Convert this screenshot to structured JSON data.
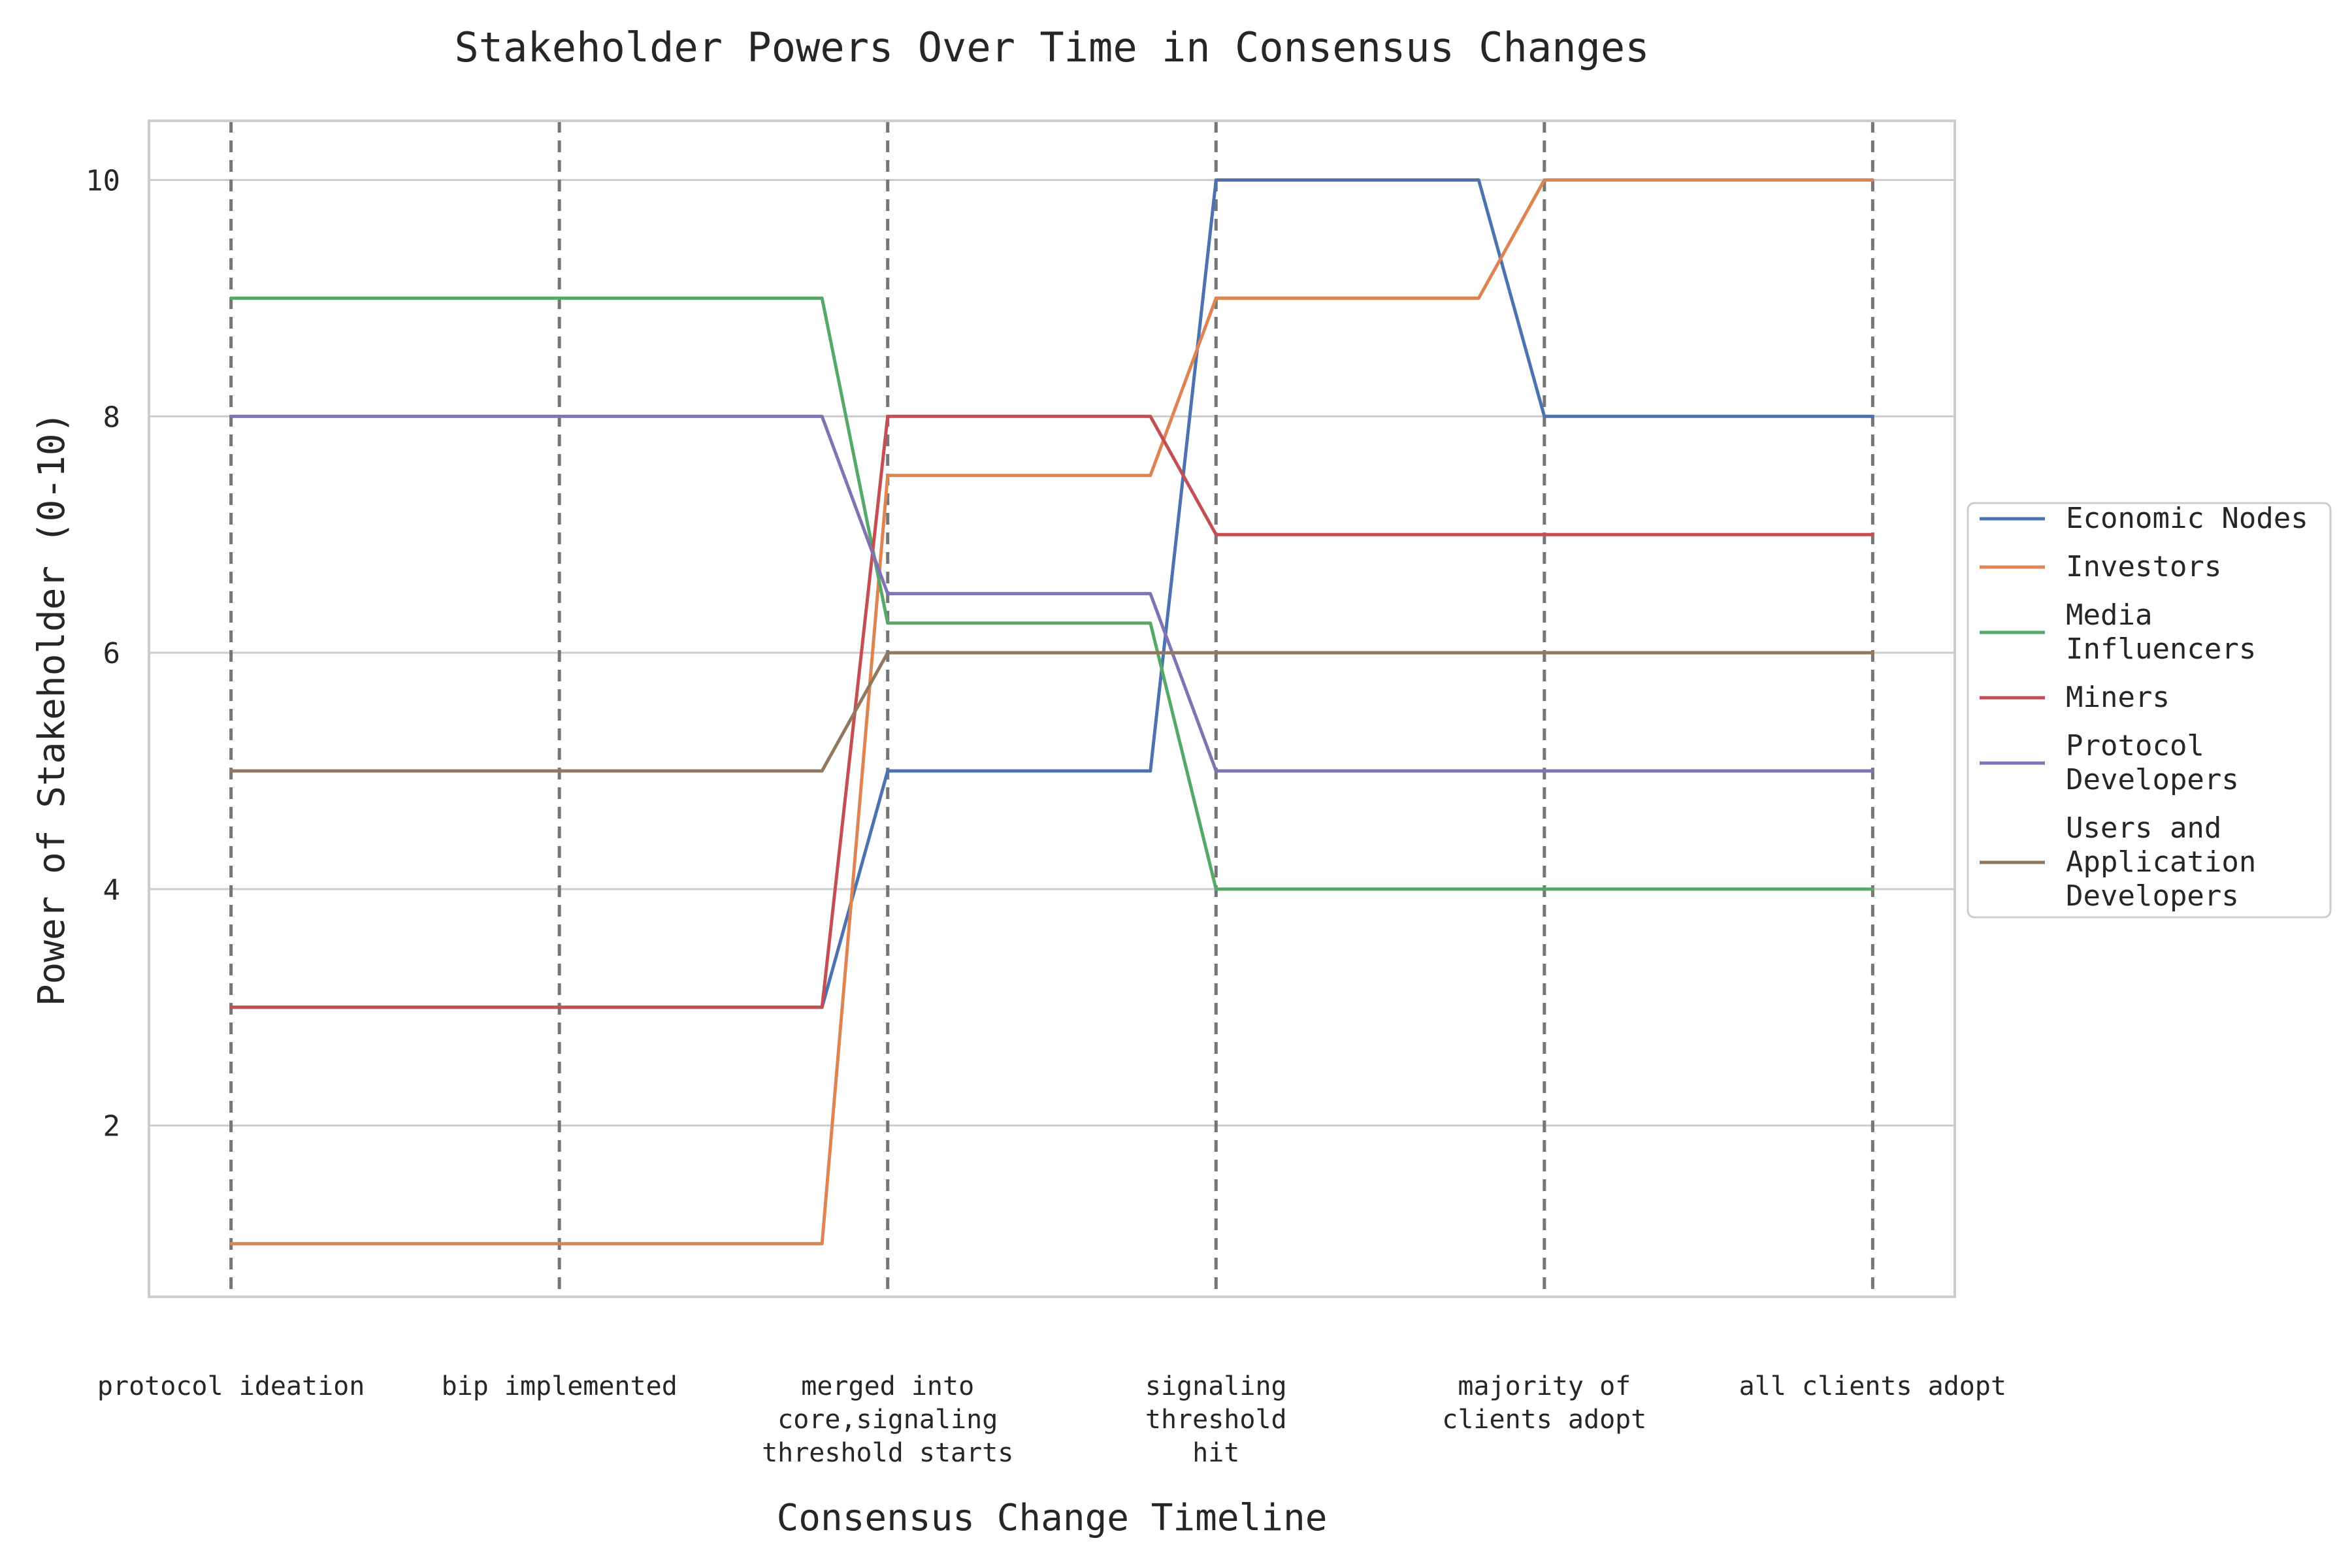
{
  "chart_data": {
    "type": "line",
    "title": "Stakeholder Powers Over Time in Consensus Changes",
    "xlabel": "Consensus Change Timeline",
    "ylabel": "Power of Stakeholder (0-10)",
    "x_range": [
      -0.25,
      5.25
    ],
    "ylim": [
      0.55,
      10.5
    ],
    "y_ticks": [
      2,
      4,
      6,
      8,
      10
    ],
    "grid": "horizontal",
    "legend_position": "right",
    "milestones": [
      {
        "x": 0,
        "label_lines": [
          "protocol ideation"
        ]
      },
      {
        "x": 1,
        "label_lines": [
          "bip implemented"
        ]
      },
      {
        "x": 2,
        "label_lines": [
          "merged into",
          "core,signaling",
          "threshold starts"
        ]
      },
      {
        "x": 3,
        "label_lines": [
          "signaling",
          "threshold",
          "hit"
        ]
      },
      {
        "x": 4,
        "label_lines": [
          "majority of",
          "clients adopt"
        ]
      },
      {
        "x": 5,
        "label_lines": [
          "all clients adopt"
        ]
      }
    ],
    "series": [
      {
        "name": "Economic Nodes",
        "legend_lines": [
          "Economic Nodes"
        ],
        "color": "#4c72b0",
        "points": [
          [
            0,
            3
          ],
          [
            1,
            3
          ],
          [
            1.8,
            3
          ],
          [
            2,
            5
          ],
          [
            2,
            5
          ],
          [
            2.8,
            5
          ],
          [
            3,
            10
          ],
          [
            3,
            10
          ],
          [
            3.8,
            10
          ],
          [
            4,
            8
          ],
          [
            4,
            8
          ],
          [
            5,
            8
          ]
        ]
      },
      {
        "name": "Investors",
        "legend_lines": [
          "Investors"
        ],
        "color": "#dd8452",
        "points": [
          [
            0,
            1
          ],
          [
            1,
            1
          ],
          [
            1.8,
            1
          ],
          [
            2,
            7.5
          ],
          [
            2,
            7.5
          ],
          [
            2.8,
            7.5
          ],
          [
            3,
            9
          ],
          [
            3,
            9
          ],
          [
            3.8,
            9
          ],
          [
            4,
            10
          ],
          [
            4,
            10
          ],
          [
            5,
            10
          ]
        ]
      },
      {
        "name": "Media Influencers",
        "legend_lines": [
          "Media",
          "Influencers"
        ],
        "color": "#55a868",
        "points": [
          [
            0,
            9
          ],
          [
            1,
            9
          ],
          [
            1.8,
            9
          ],
          [
            2,
            6.25
          ],
          [
            2,
            6.25
          ],
          [
            2.8,
            6.25
          ],
          [
            3,
            4
          ],
          [
            3,
            4
          ],
          [
            3.8,
            4
          ],
          [
            4,
            4
          ],
          [
            4,
            4
          ],
          [
            5,
            4
          ]
        ]
      },
      {
        "name": "Miners",
        "legend_lines": [
          "Miners"
        ],
        "color": "#c44e52",
        "points": [
          [
            0,
            3
          ],
          [
            1,
            3
          ],
          [
            1.8,
            3
          ],
          [
            2,
            8
          ],
          [
            2,
            8
          ],
          [
            2.8,
            8
          ],
          [
            3,
            7
          ],
          [
            3,
            7
          ],
          [
            3.8,
            7
          ],
          [
            4,
            7
          ],
          [
            4,
            7
          ],
          [
            5,
            7
          ]
        ]
      },
      {
        "name": "Protocol Developers",
        "legend_lines": [
          "Protocol",
          "Developers"
        ],
        "color": "#8172b3",
        "points": [
          [
            0,
            8
          ],
          [
            1,
            8
          ],
          [
            1.8,
            8
          ],
          [
            2,
            6.5
          ],
          [
            2,
            6.5
          ],
          [
            2.8,
            6.5
          ],
          [
            3,
            5
          ],
          [
            3,
            5
          ],
          [
            3.8,
            5
          ],
          [
            4,
            5
          ],
          [
            4,
            5
          ],
          [
            5,
            5
          ]
        ]
      },
      {
        "name": "Users and Application Developers",
        "legend_lines": [
          "Users and",
          "Application",
          "Developers"
        ],
        "color": "#937860",
        "points": [
          [
            0,
            5
          ],
          [
            1,
            5
          ],
          [
            1.8,
            5
          ],
          [
            2,
            6
          ],
          [
            2,
            6
          ],
          [
            2.8,
            6
          ],
          [
            3,
            6
          ],
          [
            3,
            6
          ],
          [
            3.8,
            6
          ],
          [
            4,
            6
          ],
          [
            4,
            6
          ],
          [
            5,
            6
          ]
        ]
      }
    ],
    "colors": {
      "grid": "#cccccc",
      "frame": "#cccccc",
      "milestone_line": "#767676",
      "text": "#262626"
    }
  }
}
